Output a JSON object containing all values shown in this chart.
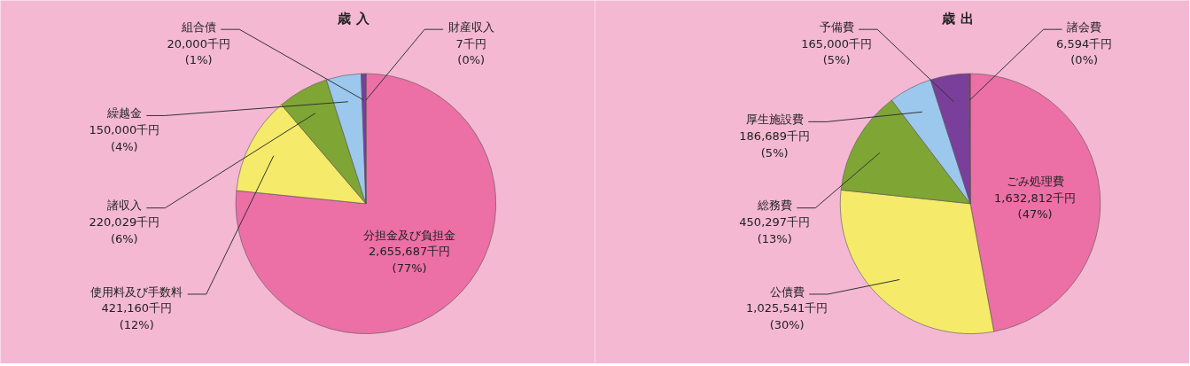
{
  "chart_data": [
    {
      "type": "pie",
      "title": "歳 入",
      "categories": [
        "分担金及び負担金",
        "使用料及び手数料",
        "諸収入",
        "繰越金",
        "組合債",
        "財産収入"
      ],
      "values": [
        2655687,
        421160,
        220029,
        150000,
        20000,
        7
      ],
      "colors": [
        "#ec6fa6",
        "#f5ea6a",
        "#7fa534",
        "#9cc8ee",
        "#7a3f9a",
        "#c2186b"
      ],
      "value_labels": [
        "2,655,687千円\n(77%)",
        "421,160千円\n(12%)",
        "220,029千円\n(6%)",
        "150,000千円\n(4%)",
        "20,000千円\n(1%)",
        "7千円\n(0%)"
      ]
    },
    {
      "type": "pie",
      "title": "歳 出",
      "categories": [
        "ごみ処理費",
        "公債費",
        "総務費",
        "厚生施設費",
        "予備費",
        "諸会費"
      ],
      "values": [
        1632812,
        1025541,
        450297,
        186689,
        165000,
        6594
      ],
      "colors": [
        "#ec6fa6",
        "#f5ea6a",
        "#7fa534",
        "#9cc8ee",
        "#7a3f9a",
        "#c2186b"
      ],
      "value_labels": [
        "1,632,812千円\n(47%)",
        "1,025,541千円\n(30%)",
        "450,297千円\n(13%)",
        "186,689千円\n(5%)",
        "165,000千円\n(5%)",
        "6,594千円\n(0%)"
      ]
    }
  ]
}
